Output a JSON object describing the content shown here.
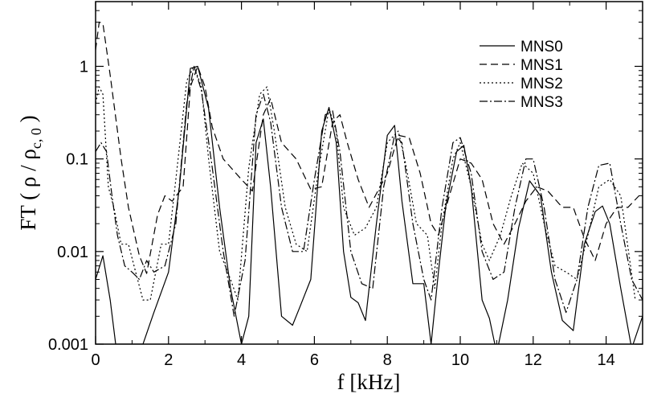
{
  "chart_data": {
    "type": "line",
    "title": "",
    "xlabel": "f [kHz]",
    "ylabel": "FT ( ρ / ρ",
    "ylabel_sub": "c, 0",
    "ylabel_close": " )",
    "xlim": [
      0,
      15
    ],
    "ylim": [
      0.001,
      5
    ],
    "yscale": "log",
    "grid": false,
    "legend_position": "top-right",
    "x_ticks": [
      {
        "value": 0,
        "label": "0"
      },
      {
        "value": 2,
        "label": "2"
      },
      {
        "value": 4,
        "label": "4"
      },
      {
        "value": 6,
        "label": "6"
      },
      {
        "value": 8,
        "label": "8"
      },
      {
        "value": 10,
        "label": "10"
      },
      {
        "value": 12,
        "label": "12"
      },
      {
        "value": 14,
        "label": "14"
      }
    ],
    "y_ticks": [
      {
        "value": 0.001,
        "label": "0.001"
      },
      {
        "value": 0.01,
        "label": "0.01"
      },
      {
        "value": 0.1,
        "label": "0.1"
      },
      {
        "value": 1,
        "label": "1"
      }
    ],
    "series": [
      {
        "name": "MNS0",
        "dash": "",
        "x": [
          0,
          0.2,
          0.4,
          0.55,
          1.3,
          1.6,
          2.0,
          2.3,
          2.6,
          2.8,
          3.1,
          3.4,
          3.7,
          4.0,
          4.2,
          4.4,
          4.6,
          4.8,
          5.1,
          5.4,
          5.6,
          5.9,
          6.2,
          6.4,
          6.6,
          6.8,
          7.0,
          7.2,
          7.4,
          7.7,
          8.0,
          8.2,
          8.4,
          8.7,
          9.0,
          9.2,
          9.4,
          9.6,
          9.9,
          10.1,
          10.3,
          10.6,
          10.8,
          11.0,
          11.3,
          11.6,
          11.9,
          12.2,
          12.5,
          12.8,
          13.1,
          13.4,
          13.7,
          13.9,
          14.1,
          14.4,
          14.7,
          15.0
        ],
        "y": [
          0.005,
          0.009,
          0.003,
          0.001,
          0.001,
          0.0022,
          0.006,
          0.05,
          0.95,
          1.0,
          0.35,
          0.03,
          0.004,
          0.001,
          0.002,
          0.15,
          0.27,
          0.05,
          0.002,
          0.0016,
          0.0025,
          0.005,
          0.2,
          0.36,
          0.15,
          0.01,
          0.0032,
          0.0028,
          0.0018,
          0.02,
          0.18,
          0.23,
          0.035,
          0.0045,
          0.0045,
          0.001,
          0.006,
          0.03,
          0.12,
          0.14,
          0.05,
          0.003,
          0.0019,
          0.0008,
          0.003,
          0.018,
          0.058,
          0.04,
          0.006,
          0.0018,
          0.0014,
          0.012,
          0.027,
          0.031,
          0.02,
          0.004,
          0.0009,
          0.002
        ]
      },
      {
        "name": "MNS1",
        "dash": "9,5",
        "x": [
          0,
          0.1,
          0.2,
          0.4,
          0.7,
          0.9,
          1.2,
          1.4,
          1.7,
          1.9,
          2.1,
          2.4,
          2.6,
          2.8,
          3.0,
          3.2,
          3.5,
          4.0,
          4.3,
          4.6,
          4.8,
          5.1,
          5.5,
          5.9,
          6.2,
          6.5,
          6.7,
          6.9,
          7.2,
          7.5,
          8.0,
          8.3,
          8.6,
          8.9,
          9.2,
          9.4,
          9.7,
          10.0,
          10.3,
          10.6,
          10.9,
          11.2,
          11.5,
          11.8,
          12.1,
          12.4,
          12.8,
          13.1,
          13.4,
          13.7,
          14.0,
          14.3,
          14.6,
          14.9
        ],
        "y": [
          1.5,
          3.0,
          2.9,
          0.8,
          0.1,
          0.03,
          0.009,
          0.0058,
          0.025,
          0.04,
          0.035,
          0.05,
          0.6,
          1.0,
          0.6,
          0.22,
          0.1,
          0.06,
          0.045,
          0.3,
          0.45,
          0.15,
          0.1,
          0.047,
          0.05,
          0.25,
          0.3,
          0.15,
          0.06,
          0.03,
          0.07,
          0.18,
          0.17,
          0.07,
          0.02,
          0.015,
          0.04,
          0.1,
          0.09,
          0.06,
          0.02,
          0.012,
          0.02,
          0.035,
          0.05,
          0.045,
          0.03,
          0.03,
          0.014,
          0.008,
          0.02,
          0.03,
          0.03,
          0.04
        ]
      },
      {
        "name": "MNS2",
        "dash": "2,3",
        "x": [
          0,
          0.1,
          0.2,
          0.35,
          0.5,
          0.7,
          0.9,
          1.1,
          1.3,
          1.5,
          1.8,
          2.0,
          2.2,
          2.5,
          2.7,
          2.9,
          3.1,
          3.4,
          3.7,
          3.9,
          4.2,
          4.5,
          4.7,
          4.9,
          5.2,
          5.5,
          5.8,
          6.1,
          6.4,
          6.6,
          6.8,
          7.1,
          7.4,
          7.7,
          8.0,
          8.3,
          8.5,
          8.8,
          9.1,
          9.3,
          9.5,
          9.8,
          10.0,
          10.3,
          10.6,
          10.8,
          11.1,
          11.4,
          11.7,
          12.0,
          12.3,
          12.6,
          12.9,
          13.2,
          13.5,
          13.8,
          14.1,
          14.4,
          14.8
        ],
        "y": [
          0.4,
          0.6,
          0.5,
          0.05,
          0.03,
          0.012,
          0.012,
          0.006,
          0.003,
          0.003,
          0.012,
          0.012,
          0.06,
          0.7,
          1.0,
          0.6,
          0.1,
          0.01,
          0.005,
          0.003,
          0.08,
          0.5,
          0.6,
          0.2,
          0.03,
          0.012,
          0.01,
          0.07,
          0.35,
          0.2,
          0.03,
          0.015,
          0.018,
          0.03,
          0.15,
          0.2,
          0.09,
          0.02,
          0.015,
          0.004,
          0.02,
          0.1,
          0.15,
          0.05,
          0.012,
          0.008,
          0.015,
          0.04,
          0.09,
          0.07,
          0.02,
          0.007,
          0.006,
          0.005,
          0.015,
          0.05,
          0.06,
          0.04,
          0.003
        ]
      },
      {
        "name": "MNS3",
        "dash": "10,3,2,3",
        "x": [
          0,
          0.15,
          0.3,
          0.45,
          0.6,
          0.8,
          1.0,
          1.2,
          1.4,
          1.6,
          1.9,
          2.2,
          2.5,
          2.7,
          2.9,
          3.2,
          3.5,
          3.8,
          4.1,
          4.4,
          4.6,
          4.8,
          5.1,
          5.4,
          5.7,
          6.0,
          6.3,
          6.5,
          6.7,
          7.0,
          7.3,
          7.6,
          7.9,
          8.2,
          8.4,
          8.7,
          9.0,
          9.2,
          9.5,
          9.8,
          10.0,
          10.3,
          10.6,
          10.9,
          11.2,
          11.5,
          11.8,
          12.0,
          12.3,
          12.6,
          12.9,
          13.2,
          13.5,
          13.8,
          14.1,
          14.4,
          14.7,
          15.0
        ],
        "y": [
          0.12,
          0.15,
          0.12,
          0.04,
          0.015,
          0.007,
          0.006,
          0.005,
          0.008,
          0.006,
          0.007,
          0.02,
          0.4,
          1.0,
          0.55,
          0.08,
          0.01,
          0.002,
          0.008,
          0.3,
          0.5,
          0.25,
          0.03,
          0.01,
          0.01,
          0.06,
          0.3,
          0.33,
          0.12,
          0.01,
          0.0045,
          0.004,
          0.05,
          0.18,
          0.15,
          0.02,
          0.005,
          0.003,
          0.03,
          0.15,
          0.17,
          0.07,
          0.01,
          0.005,
          0.006,
          0.03,
          0.1,
          0.1,
          0.03,
          0.005,
          0.0022,
          0.005,
          0.03,
          0.085,
          0.09,
          0.02,
          0.005,
          0.003
        ]
      }
    ]
  }
}
